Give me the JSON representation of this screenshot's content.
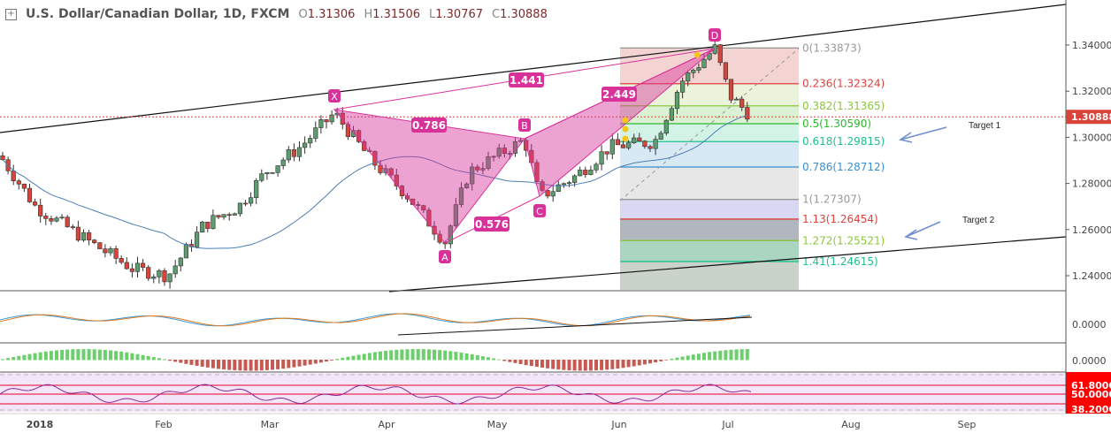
{
  "header": {
    "title": "U.S. Dollar/Canadian Dollar, 1D, FXCM",
    "open_label": "O",
    "open": "1.31306",
    "high_label": "H",
    "high": "1.31506",
    "low_label": "L",
    "low": "1.30767",
    "close_label": "C",
    "close": "1.30888"
  },
  "price_axis": [
    "1.34000",
    "1.32000",
    "1.30000",
    "1.28000",
    "1.26000",
    "1.24000"
  ],
  "last_price": "1.30888",
  "fib_levels": [
    {
      "label": "0(1.33873)",
      "color": "#999999"
    },
    {
      "label": "0.236(1.32324)",
      "color": "#e0403a"
    },
    {
      "label": "0.382(1.31365)",
      "color": "#8cc63f"
    },
    {
      "label": "0.5(1.30590)",
      "color": "#2eb82e"
    },
    {
      "label": "0.618(1.29815)",
      "color": "#1fbf8f"
    },
    {
      "label": "0.786(1.28712)",
      "color": "#3a8fd0"
    },
    {
      "label": "1(1.27307)",
      "color": "#999999"
    },
    {
      "label": "1.13(1.26454)",
      "color": "#e0403a"
    },
    {
      "label": "1.272(1.25521)",
      "color": "#8cc63f"
    },
    {
      "label": "1.41(1.24615)",
      "color": "#1fbf8f"
    }
  ],
  "pattern": {
    "points": [
      "X",
      "A",
      "B",
      "C",
      "D"
    ],
    "ratios": [
      "0.786",
      "1.441",
      "0.576",
      "2.449"
    ]
  },
  "targets": [
    "Target 1",
    "Target 2"
  ],
  "macd_axis": "0.0000",
  "hist_axis": "0.0000",
  "rsi_axis": [
    "61.8000",
    "50.0000",
    "38.2000"
  ],
  "time_axis": [
    "2018",
    "Feb",
    "Mar",
    "Apr",
    "May",
    "Jun",
    "Jul",
    "Aug",
    "Sep"
  ],
  "colors": {
    "up": "#5d9c6e",
    "down": "#d9443a",
    "pattern": "#d8329a",
    "ma": "#4a7fb5"
  }
}
